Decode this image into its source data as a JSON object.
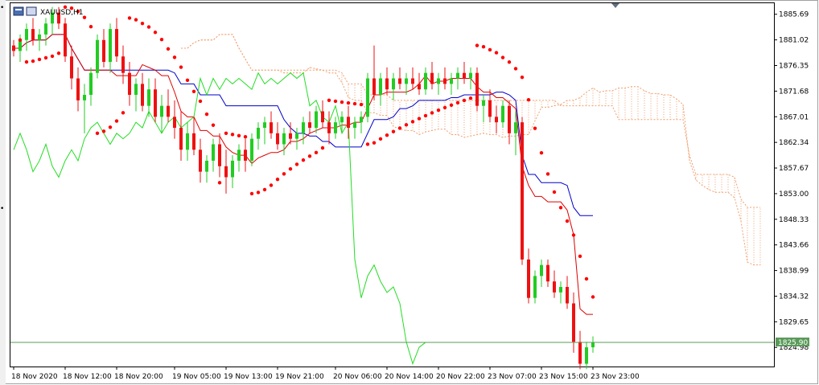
{
  "window": {
    "title": "XAUUSD,H1"
  },
  "price_label": {
    "value": "1825.90",
    "under_value": "1824.98"
  },
  "colors": {
    "bull": "#22cc22",
    "bear": "#ee1111",
    "tenkan": "#dd0000",
    "kijun": "#0000cc",
    "chikou": "#22dd22",
    "cloud": "#f0a070",
    "sar": "#ff0000",
    "price_line": "#5a9a5a"
  },
  "chart_data": {
    "type": "line",
    "title": "XAUUSD,H1",
    "ylim": [
      1821.5,
      1887.7
    ],
    "y_ticks": [
      "1885.69",
      "1881.02",
      "1876.35",
      "1871.68",
      "1867.01",
      "1862.34",
      "1857.67",
      "1853.00",
      "1848.33",
      "1843.66",
      "1838.99",
      "1834.32",
      "1829.65",
      "1824.98"
    ],
    "x_ticks": [
      "18 Nov 2020",
      "18 Nov 12:00",
      "18 Nov 20:00",
      "19 Nov 05:00",
      "19 Nov 13:00",
      "19 Nov 21:00",
      "20 Nov 06:00",
      "20 Nov 14:00",
      "20 Nov 22:00",
      "23 Nov 07:00",
      "23 Nov 15:00",
      "23 Nov 23:00"
    ],
    "current_price": 1825.9,
    "candles": [
      [
        1880,
        1881,
        1878,
        1879
      ],
      [
        1879,
        1882,
        1877,
        1881
      ],
      [
        1881,
        1884,
        1879,
        1883
      ],
      [
        1883,
        1885,
        1880,
        1881
      ],
      [
        1881,
        1883,
        1879,
        1882
      ],
      [
        1882,
        1885,
        1880,
        1884
      ],
      [
        1884,
        1887,
        1882,
        1886
      ],
      [
        1886,
        1887,
        1883,
        1884
      ],
      [
        1884,
        1885,
        1877,
        1878
      ],
      [
        1878,
        1880,
        1872,
        1874
      ],
      [
        1874,
        1876,
        1868,
        1870
      ],
      [
        1870,
        1873,
        1864,
        1871
      ],
      [
        1871,
        1876,
        1869,
        1875
      ],
      [
        1875,
        1882,
        1874,
        1881
      ],
      [
        1881,
        1883,
        1876,
        1877
      ],
      [
        1877,
        1884,
        1875,
        1883
      ],
      [
        1883,
        1885,
        1877,
        1878
      ],
      [
        1878,
        1880,
        1873,
        1875
      ],
      [
        1875,
        1877,
        1869,
        1871
      ],
      [
        1871,
        1874,
        1868,
        1873
      ],
      [
        1873,
        1875,
        1868,
        1869
      ],
      [
        1869,
        1874,
        1867,
        1872
      ],
      [
        1872,
        1874,
        1866,
        1867
      ],
      [
        1867,
        1871,
        1864,
        1869
      ],
      [
        1869,
        1872,
        1866,
        1867
      ],
      [
        1867,
        1870,
        1863,
        1865
      ],
      [
        1865,
        1868,
        1859,
        1861
      ],
      [
        1861,
        1866,
        1859,
        1864
      ],
      [
        1864,
        1867,
        1860,
        1861
      ],
      [
        1861,
        1863,
        1855,
        1857
      ],
      [
        1857,
        1860,
        1855,
        1859
      ],
      [
        1859,
        1863,
        1857,
        1862
      ],
      [
        1862,
        1864,
        1856,
        1858
      ],
      [
        1858,
        1861,
        1853,
        1856
      ],
      [
        1856,
        1860,
        1854,
        1859
      ],
      [
        1859,
        1862,
        1857,
        1861
      ],
      [
        1861,
        1863,
        1857,
        1859
      ],
      [
        1859,
        1864,
        1858,
        1863
      ],
      [
        1863,
        1866,
        1861,
        1865
      ],
      [
        1865,
        1867,
        1862,
        1866
      ],
      [
        1866,
        1868,
        1863,
        1864
      ],
      [
        1864,
        1866,
        1861,
        1862
      ],
      [
        1862,
        1865,
        1860,
        1864
      ],
      [
        1864,
        1866,
        1862,
        1863
      ],
      [
        1863,
        1865,
        1861,
        1864
      ],
      [
        1864,
        1867,
        1862,
        1866
      ],
      [
        1866,
        1868,
        1864,
        1865
      ],
      [
        1865,
        1869,
        1864,
        1868
      ],
      [
        1868,
        1870,
        1865,
        1866
      ],
      [
        1866,
        1868,
        1862,
        1864
      ],
      [
        1864,
        1867,
        1863,
        1866
      ],
      [
        1866,
        1868,
        1864,
        1867
      ],
      [
        1867,
        1869,
        1863,
        1865
      ],
      [
        1865,
        1867,
        1863,
        1866
      ],
      [
        1866,
        1868,
        1864,
        1867
      ],
      [
        1867,
        1875,
        1866,
        1874
      ],
      [
        1874,
        1880,
        1870,
        1871
      ],
      [
        1871,
        1875,
        1869,
        1874
      ],
      [
        1874,
        1876,
        1871,
        1872
      ],
      [
        1872,
        1875,
        1870,
        1874
      ],
      [
        1874,
        1876,
        1872,
        1873
      ],
      [
        1873,
        1875,
        1871,
        1874
      ],
      [
        1874,
        1876,
        1872,
        1873
      ],
      [
        1873,
        1875,
        1871,
        1872
      ],
      [
        1872,
        1876,
        1871,
        1875
      ],
      [
        1875,
        1877,
        1872,
        1873
      ],
      [
        1873,
        1875,
        1871,
        1874
      ],
      [
        1874,
        1876,
        1872,
        1873
      ],
      [
        1873,
        1875,
        1871,
        1874
      ],
      [
        1874,
        1876,
        1872,
        1875
      ],
      [
        1875,
        1877,
        1873,
        1874
      ],
      [
        1874,
        1876,
        1872,
        1875
      ],
      [
        1875,
        1876,
        1868,
        1869
      ],
      [
        1869,
        1871,
        1866,
        1870
      ],
      [
        1870,
        1872,
        1866,
        1867
      ],
      [
        1867,
        1869,
        1864,
        1866
      ],
      [
        1866,
        1870,
        1865,
        1869
      ],
      [
        1869,
        1870,
        1862,
        1864
      ],
      [
        1864,
        1868,
        1860,
        1866
      ],
      [
        1866,
        1867,
        1840,
        1841
      ],
      [
        1841,
        1843,
        1833,
        1834
      ],
      [
        1834,
        1839,
        1833,
        1838
      ],
      [
        1838,
        1841,
        1836,
        1840
      ],
      [
        1840,
        1841,
        1836,
        1837
      ],
      [
        1837,
        1839,
        1834,
        1835
      ],
      [
        1835,
        1837,
        1833,
        1836
      ],
      [
        1836,
        1838,
        1832,
        1833
      ],
      [
        1833,
        1835,
        1824,
        1826
      ],
      [
        1826,
        1828,
        1821,
        1822
      ],
      [
        1822,
        1826,
        1821,
        1825
      ],
      [
        1825,
        1827,
        1824,
        1825.9
      ]
    ]
  }
}
